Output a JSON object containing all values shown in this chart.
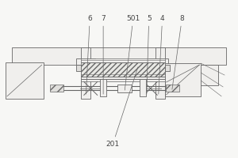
{
  "bg_color": "#f7f7f5",
  "line_color": "#666666",
  "fill_light": "#f0efed",
  "fill_mid": "#e0dfdc",
  "font_size": 6.5,
  "label_color": "#444444"
}
